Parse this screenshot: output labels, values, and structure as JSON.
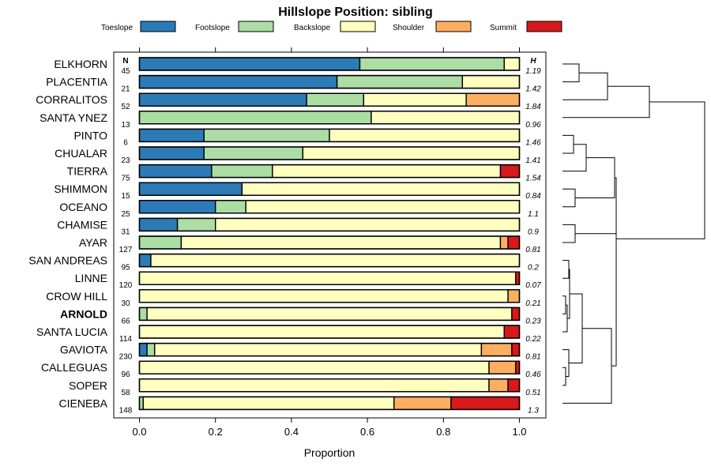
{
  "chart_data": {
    "type": "bar",
    "orientation": "horizontal",
    "stacked": true,
    "title": "Hillslope Position: sibling",
    "xlabel": "Proportion",
    "ylabel": "",
    "xlim": [
      0,
      1
    ],
    "x_ticks": [
      "0.0",
      "0.2",
      "0.4",
      "0.6",
      "0.8",
      "1.0"
    ],
    "x_tick_values": [
      0,
      0.2,
      0.4,
      0.6,
      0.8,
      1.0
    ],
    "n_header": "N",
    "h_header": "H",
    "highlight_category": "ARNOLD",
    "legend": [
      {
        "name": "Toeslope",
        "color": "#2c7bb6"
      },
      {
        "name": "Footslope",
        "color": "#abdda4"
      },
      {
        "name": "Backslope",
        "color": "#ffffbf"
      },
      {
        "name": "Shoulder",
        "color": "#fdae61"
      },
      {
        "name": "Summit",
        "color": "#d7191c"
      }
    ],
    "categories": [
      "ELKHORN",
      "PLACENTIA",
      "CORRALITOS",
      "SANTA YNEZ",
      "PINTO",
      "CHUALAR",
      "TIERRA",
      "SHIMMON",
      "OCEANO",
      "CHAMISE",
      "AYAR",
      "SAN ANDREAS",
      "LINNE",
      "CROW HILL",
      "ARNOLD",
      "SANTA LUCIA",
      "GAVIOTA",
      "CALLEGUAS",
      "SOPER",
      "CIENEBA"
    ],
    "n": [
      "45",
      "21",
      "52",
      "13",
      "6",
      "23",
      "75",
      "15",
      "25",
      "31",
      "127",
      "95",
      "120",
      "30",
      "66",
      "114",
      "230",
      "96",
      "58",
      "148"
    ],
    "h": [
      "1.19",
      "1.42",
      "1.84",
      "0.96",
      "1.46",
      "1.41",
      "1.54",
      "0.84",
      "1.1",
      "0.9",
      "0.81",
      "0.2",
      "0.07",
      "0.21",
      "0.23",
      "0.22",
      "0.81",
      "0.46",
      "0.51",
      "1.3"
    ],
    "series": [
      {
        "name": "Toeslope",
        "values": [
          0.58,
          0.52,
          0.44,
          0,
          0.17,
          0.17,
          0.19,
          0.27,
          0.2,
          0.1,
          0,
          0.03,
          0,
          0,
          0,
          0,
          0.02,
          0,
          0,
          0
        ]
      },
      {
        "name": "Footslope",
        "values": [
          0.38,
          0.33,
          0.15,
          0.61,
          0.33,
          0.26,
          0.16,
          0,
          0.08,
          0.1,
          0.11,
          0,
          0,
          0,
          0.02,
          0,
          0.02,
          0,
          0,
          0.01
        ]
      },
      {
        "name": "Backslope",
        "values": [
          0.04,
          0.15,
          0.27,
          0.39,
          0.5,
          0.57,
          0.6,
          0.73,
          0.72,
          0.8,
          0.84,
          0.97,
          0.99,
          0.97,
          0.96,
          0.96,
          0.86,
          0.92,
          0.92,
          0.66
        ]
      },
      {
        "name": "Shoulder",
        "values": [
          0,
          0,
          0.14,
          0,
          0,
          0,
          0,
          0,
          0,
          0,
          0.02,
          0,
          0,
          0.03,
          0,
          0,
          0.08,
          0.07,
          0.05,
          0.15
        ]
      },
      {
        "name": "Summit",
        "values": [
          0,
          0,
          0,
          0,
          0,
          0,
          0.05,
          0,
          0,
          0,
          0.03,
          0,
          0.01,
          0,
          0.02,
          0.04,
          0.02,
          0.01,
          0.03,
          0.18
        ]
      }
    ]
  }
}
